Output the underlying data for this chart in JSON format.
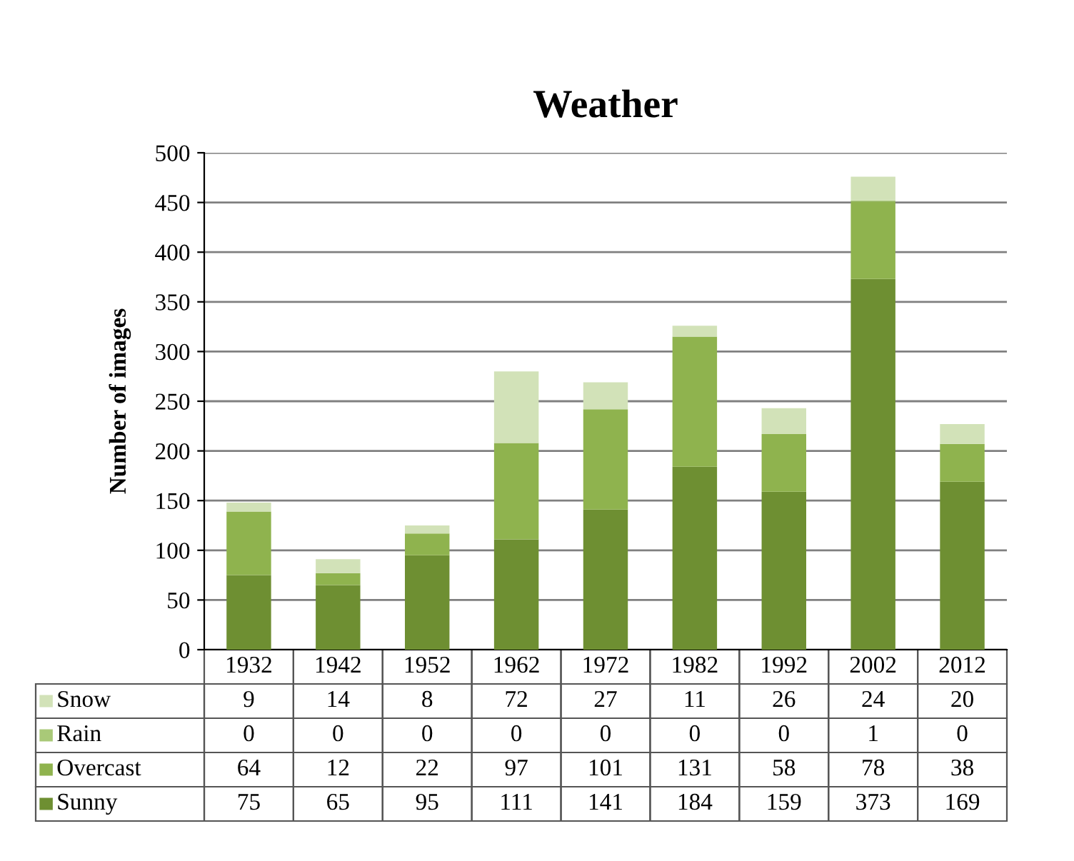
{
  "chart_data": {
    "type": "bar",
    "title": "Weather",
    "ylabel": "Number of images",
    "stacked": true,
    "data_labels": true,
    "legend": "bottom left",
    "grid": "y",
    "categories": [
      "1932",
      "1942",
      "1952",
      "1962",
      "1972",
      "1982",
      "1992",
      "2002",
      "2012"
    ],
    "ylim": [
      0,
      500
    ],
    "yticks": [
      0,
      50,
      100,
      150,
      200,
      250,
      300,
      350,
      400,
      450,
      500
    ],
    "series": [
      {
        "name": "Sunny",
        "color": "#6e8f32",
        "values": [
          75,
          65,
          95,
          111,
          141,
          184,
          159,
          373,
          169
        ]
      },
      {
        "name": "Overcast",
        "color": "#8fb34e",
        "values": [
          64,
          12,
          22,
          97,
          101,
          131,
          58,
          78,
          38
        ]
      },
      {
        "name": "Rain",
        "color": "#a9c978",
        "values": [
          0,
          0,
          0,
          0,
          0,
          0,
          0,
          1,
          0
        ]
      },
      {
        "name": "Snow",
        "color": "#d2e2b8",
        "values": [
          9,
          14,
          8,
          72,
          27,
          11,
          26,
          24,
          20
        ]
      }
    ]
  }
}
